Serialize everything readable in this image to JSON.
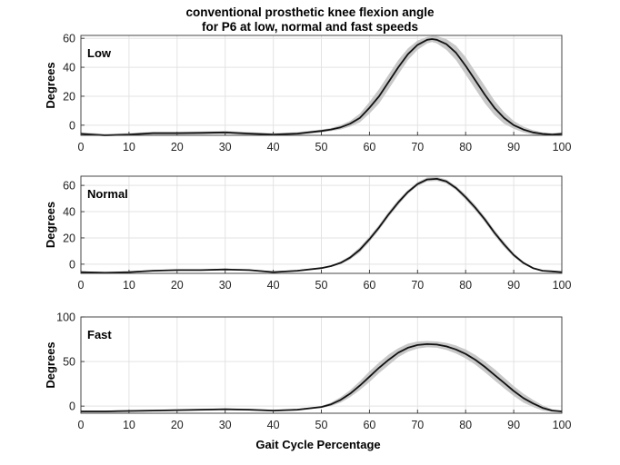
{
  "figure": {
    "title_line1": "conventional prosthetic knee flexion angle",
    "title_line2": "for P6 at low, normal and fast speeds",
    "xlabel": "Gait Cycle Percentage"
  },
  "chart_data": [
    {
      "type": "line",
      "panel_label": "Low",
      "ylabel": "Degrees",
      "xlim": [
        0,
        100
      ],
      "ylim": [
        -7,
        62
      ],
      "xticks": [
        0,
        10,
        20,
        30,
        40,
        50,
        60,
        70,
        80,
        90,
        100
      ],
      "yticks": [
        0,
        20,
        40,
        60
      ],
      "grid": true,
      "colors": {
        "mean": "#111111",
        "band": "#c8c8c8"
      },
      "x": [
        0,
        5,
        10,
        15,
        20,
        25,
        30,
        35,
        40,
        45,
        50,
        52,
        54,
        56,
        58,
        60,
        62,
        64,
        66,
        68,
        70,
        72,
        73,
        74,
        76,
        78,
        80,
        82,
        84,
        86,
        88,
        90,
        92,
        94,
        96,
        98,
        100
      ],
      "series": [
        {
          "role": "mean",
          "values": [
            -6,
            -7,
            -6.5,
            -5.5,
            -5.5,
            -5.3,
            -5,
            -5.8,
            -6.5,
            -5.8,
            -4,
            -3,
            -1.5,
            1,
            5,
            12,
            20,
            30,
            40,
            49,
            55.5,
            59,
            59.5,
            59,
            56,
            50,
            41,
            31,
            21,
            12,
            5,
            0,
            -3,
            -5,
            -6,
            -6.5,
            -6
          ]
        },
        {
          "role": "band-upper",
          "values": [
            -5,
            -6,
            -5.5,
            -4.5,
            -4.5,
            -4.3,
            -4,
            -4.8,
            -5.5,
            -4.8,
            -3,
            -2,
            0,
            3,
            8,
            16,
            25,
            35,
            45,
            53,
            58.5,
            61,
            61.5,
            61.5,
            59.5,
            55,
            47,
            37,
            27,
            17,
            9,
            3,
            -1,
            -3.5,
            -5,
            -5.5,
            -5
          ]
        },
        {
          "role": "band-lower",
          "values": [
            -7,
            -7.5,
            -7.3,
            -6.5,
            -6.5,
            -6.3,
            -6,
            -6.8,
            -7,
            -6.8,
            -5,
            -4,
            -3,
            -1,
            2,
            8,
            15,
            25,
            35,
            45,
            52,
            56.5,
            57.5,
            56.5,
            52,
            45,
            35,
            25,
            15,
            7,
            1,
            -2.5,
            -5,
            -6.5,
            -7,
            -7.3,
            -7
          ]
        }
      ]
    },
    {
      "type": "line",
      "panel_label": "Normal",
      "ylabel": "Degrees",
      "xlim": [
        0,
        100
      ],
      "ylim": [
        -7,
        67
      ],
      "xticks": [
        0,
        10,
        20,
        30,
        40,
        50,
        60,
        70,
        80,
        90,
        100
      ],
      "yticks": [
        0,
        20,
        40,
        60
      ],
      "grid": true,
      "colors": {
        "mean": "#111111",
        "band": "#c8c8c8"
      },
      "x": [
        0,
        5,
        10,
        15,
        20,
        25,
        30,
        35,
        40,
        45,
        50,
        52,
        54,
        56,
        58,
        60,
        62,
        64,
        66,
        68,
        70,
        72,
        74,
        76,
        78,
        80,
        82,
        84,
        86,
        88,
        90,
        92,
        94,
        96,
        98,
        100
      ],
      "series": [
        {
          "role": "mean",
          "values": [
            -6,
            -6.5,
            -6,
            -5,
            -4.5,
            -4.5,
            -4,
            -4.5,
            -6,
            -5,
            -3,
            -1.5,
            1,
            5,
            11,
            19,
            28,
            38,
            47,
            55,
            61,
            64.5,
            65,
            63,
            58,
            51,
            43,
            34,
            24,
            15,
            7,
            1,
            -3,
            -5,
            -5.5,
            -6
          ]
        },
        {
          "role": "band-upper",
          "values": [
            -5.5,
            -6,
            -5.5,
            -4.5,
            -4,
            -4,
            -3.5,
            -4,
            -5.5,
            -4.5,
            -2.5,
            -1,
            2,
            6.5,
            13,
            21,
            30,
            40,
            49,
            56.5,
            62.5,
            66,
            66.5,
            64.5,
            59.5,
            53,
            45,
            36,
            26,
            17,
            8.5,
            2,
            -2.5,
            -4.5,
            -5,
            -5.5
          ]
        },
        {
          "role": "band-lower",
          "values": [
            -6.5,
            -7,
            -6.5,
            -5.5,
            -5,
            -5,
            -4.5,
            -5,
            -6.5,
            -5.5,
            -3.5,
            -2,
            0,
            3.5,
            9,
            17,
            26,
            36,
            45,
            53.5,
            59.5,
            63,
            63.5,
            61.5,
            56.5,
            49,
            41,
            32,
            22,
            13,
            5.5,
            0,
            -3.5,
            -5.5,
            -6,
            -6.5
          ]
        }
      ]
    },
    {
      "type": "line",
      "panel_label": "Fast",
      "ylabel": "Degrees",
      "xlim": [
        0,
        100
      ],
      "ylim": [
        -8,
        100
      ],
      "xticks": [
        0,
        10,
        20,
        30,
        40,
        50,
        60,
        70,
        80,
        90,
        100
      ],
      "yticks": [
        0,
        50,
        100
      ],
      "grid": true,
      "colors": {
        "mean": "#111111",
        "band": "#c8c8c8"
      },
      "x": [
        0,
        5,
        10,
        15,
        20,
        25,
        30,
        35,
        40,
        45,
        50,
        52,
        54,
        56,
        58,
        60,
        62,
        64,
        66,
        68,
        70,
        72,
        74,
        76,
        78,
        80,
        82,
        84,
        86,
        88,
        90,
        92,
        94,
        96,
        98,
        100
      ],
      "series": [
        {
          "role": "mean",
          "values": [
            -6,
            -6,
            -5.5,
            -5,
            -4.5,
            -4,
            -3.5,
            -4,
            -5,
            -4,
            -1,
            2,
            7,
            14,
            23,
            33,
            43,
            52,
            60,
            65.5,
            68.5,
            69.5,
            69,
            67,
            63.5,
            58.5,
            52,
            44,
            35,
            26,
            17,
            9,
            3,
            -2,
            -5,
            -6
          ]
        },
        {
          "role": "band-upper",
          "values": [
            -5,
            -5,
            -4.5,
            -4,
            -3.5,
            -3,
            -2.5,
            -3,
            -4,
            -3,
            0,
            4,
            10,
            18,
            28,
            39,
            49,
            58,
            65,
            70,
            72.5,
            73,
            72.5,
            71,
            68,
            63.5,
            57.5,
            50,
            41.5,
            32,
            22.5,
            14,
            7,
            1,
            -3.5,
            -5
          ]
        },
        {
          "role": "band-lower",
          "values": [
            -7,
            -7,
            -6.5,
            -6,
            -5.5,
            -5,
            -4.5,
            -5,
            -6,
            -5,
            -2,
            0,
            4,
            10,
            18,
            27,
            37,
            46,
            55,
            61,
            64.5,
            66,
            65.5,
            63,
            59,
            53.5,
            46.5,
            38,
            29,
            20,
            11.5,
            4,
            -1,
            -5,
            -6.5,
            -7
          ]
        }
      ]
    }
  ]
}
